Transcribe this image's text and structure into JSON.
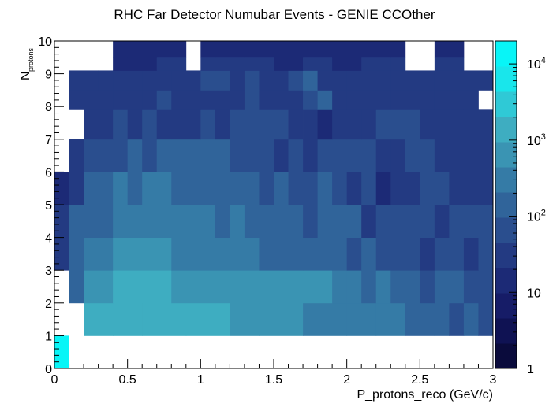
{
  "chart_data": {
    "type": "heatmap",
    "title": "RHC Far Detector Numubar Events - GENIE CCOther",
    "xlabel": "P_protons_reco (GeV/c)",
    "ylabel_main": "N",
    "ylabel_sub": "protons",
    "xlim": [
      0,
      3
    ],
    "ylim": [
      0,
      10
    ],
    "zlim": [
      1,
      20000
    ],
    "zscale": "log",
    "grid": false,
    "colorbar_position": "right",
    "x_bin_edges_count": 30,
    "y_bin_edges_count": 24,
    "x_ticks": [
      "0",
      "0.5",
      "1",
      "1.5",
      "2",
      "2.5",
      "3"
    ],
    "x_tick_values": [
      0,
      0.5,
      1,
      1.5,
      2,
      2.5,
      3
    ],
    "y_ticks": [
      "0",
      "1",
      "2",
      "3",
      "4",
      "5",
      "6",
      "7",
      "8",
      "9",
      "10"
    ],
    "y_tick_values": [
      0,
      1,
      2,
      3,
      4,
      5,
      6,
      7,
      8,
      9,
      10
    ],
    "z_ticks": [
      {
        "base": "1",
        "exp": "",
        "value": 1
      },
      {
        "base": "10",
        "exp": "",
        "value": 10
      },
      {
        "base": "10",
        "exp": "2",
        "value": 100
      },
      {
        "base": "10",
        "exp": "3",
        "value": 1000
      },
      {
        "base": "10",
        "exp": "4",
        "value": 10000
      }
    ],
    "palette": [
      "#0a0b3c",
      "#0f1253",
      "#161c67",
      "#1c2a76",
      "#233a82",
      "#2a4e8e",
      "#30649a",
      "#357ba6",
      "#3a94b3",
      "#3eadc1",
      "#2fc9d6",
      "#19e6eb",
      "#08f5f7"
    ],
    "rows": [
      {
        "y0": 0,
        "y1": 1,
        "cells": [
          [
            0,
            0.1,
            20000
          ]
        ]
      },
      {
        "y0": 1,
        "y1": 2,
        "cells": [
          [
            0.2,
            0.4,
            2000
          ],
          [
            0.4,
            0.6,
            1800
          ],
          [
            0.6,
            0.9,
            1800
          ],
          [
            0.9,
            1.2,
            1200
          ],
          [
            1.2,
            1.4,
            700
          ],
          [
            1.4,
            1.7,
            500
          ],
          [
            1.7,
            2.0,
            400
          ],
          [
            2.0,
            2.2,
            350
          ],
          [
            2.2,
            2.4,
            300
          ],
          [
            2.4,
            2.6,
            150
          ],
          [
            2.6,
            2.7,
            150
          ],
          [
            2.7,
            2.8,
            80
          ],
          [
            2.8,
            2.9,
            100
          ],
          [
            2.9,
            3.0,
            50
          ]
        ]
      },
      {
        "y0": 2,
        "y1": 3,
        "cells": [
          [
            0.1,
            0.2,
            150
          ],
          [
            0.2,
            0.4,
            800
          ],
          [
            0.4,
            0.8,
            1100
          ],
          [
            0.8,
            1.1,
            900
          ],
          [
            1.1,
            1.4,
            900
          ],
          [
            1.4,
            1.7,
            600
          ],
          [
            1.7,
            1.9,
            500
          ],
          [
            1.9,
            2.0,
            300
          ],
          [
            2.0,
            2.1,
            350
          ],
          [
            2.1,
            2.2,
            150
          ],
          [
            2.2,
            2.3,
            250
          ],
          [
            2.3,
            2.4,
            150
          ],
          [
            2.4,
            2.5,
            150
          ],
          [
            2.5,
            2.6,
            80
          ],
          [
            2.6,
            2.7,
            150
          ],
          [
            2.7,
            2.8,
            150
          ],
          [
            2.8,
            2.9,
            80
          ],
          [
            2.9,
            3.0,
            80
          ]
        ]
      },
      {
        "y0": 3,
        "y1": 4,
        "cells": [
          [
            0,
            0.1,
            40
          ],
          [
            0.1,
            0.2,
            100
          ],
          [
            0.2,
            0.4,
            350
          ],
          [
            0.4,
            0.8,
            600
          ],
          [
            0.8,
            1.1,
            300
          ],
          [
            1.1,
            1.4,
            250
          ],
          [
            1.4,
            1.7,
            180
          ],
          [
            1.7,
            1.9,
            100
          ],
          [
            1.9,
            2.0,
            150
          ],
          [
            2.0,
            2.1,
            60
          ],
          [
            2.1,
            2.2,
            200
          ],
          [
            2.2,
            2.4,
            60
          ],
          [
            2.4,
            2.5,
            80
          ],
          [
            2.5,
            2.6,
            30
          ],
          [
            2.6,
            2.8,
            60
          ],
          [
            2.8,
            2.9,
            30
          ],
          [
            2.9,
            3.0,
            60
          ]
        ]
      },
      {
        "y0": 4,
        "y1": 5,
        "cells": [
          [
            0,
            0.1,
            40
          ],
          [
            0.1,
            0.2,
            100
          ],
          [
            0.2,
            0.4,
            200
          ],
          [
            0.4,
            0.6,
            350
          ],
          [
            0.6,
            1.1,
            250
          ],
          [
            1.1,
            1.2,
            150
          ],
          [
            1.2,
            1.3,
            250
          ],
          [
            1.3,
            1.7,
            120
          ],
          [
            1.7,
            1.8,
            60
          ],
          [
            1.8,
            2.1,
            120
          ],
          [
            2.1,
            2.2,
            30
          ],
          [
            2.2,
            2.4,
            60
          ],
          [
            2.4,
            2.6,
            80
          ],
          [
            2.6,
            2.7,
            40
          ],
          [
            2.7,
            3.0,
            60
          ]
        ]
      },
      {
        "y0": 5,
        "y1": 6,
        "cells": [
          [
            0,
            0.1,
            20
          ],
          [
            0.1,
            0.2,
            40
          ],
          [
            0.2,
            0.3,
            100
          ],
          [
            0.3,
            0.4,
            180
          ],
          [
            0.4,
            0.5,
            300
          ],
          [
            0.5,
            0.6,
            180
          ],
          [
            0.6,
            0.8,
            250
          ],
          [
            0.8,
            1.1,
            180
          ],
          [
            1.1,
            1.3,
            100
          ],
          [
            1.3,
            1.4,
            180
          ],
          [
            1.4,
            1.5,
            60
          ],
          [
            1.5,
            1.6,
            100
          ],
          [
            1.6,
            1.8,
            60
          ],
          [
            1.8,
            1.9,
            100
          ],
          [
            1.9,
            2.0,
            60
          ],
          [
            2.0,
            2.1,
            40
          ],
          [
            2.1,
            2.2,
            80
          ],
          [
            2.2,
            2.3,
            20
          ],
          [
            2.3,
            2.5,
            40
          ],
          [
            2.5,
            2.7,
            60
          ],
          [
            2.7,
            3.0,
            40
          ]
        ]
      },
      {
        "y0": 6,
        "y1": 7,
        "cells": [
          [
            0.1,
            0.2,
            30
          ],
          [
            0.2,
            0.3,
            50
          ],
          [
            0.3,
            0.5,
            60
          ],
          [
            0.5,
            0.6,
            120
          ],
          [
            0.6,
            0.7,
            80
          ],
          [
            0.7,
            0.8,
            150
          ],
          [
            0.8,
            1.2,
            100
          ],
          [
            1.2,
            1.4,
            80
          ],
          [
            1.4,
            1.5,
            50
          ],
          [
            1.5,
            1.6,
            25
          ],
          [
            1.6,
            1.7,
            60
          ],
          [
            1.7,
            1.8,
            40
          ],
          [
            1.8,
            2.0,
            50
          ],
          [
            2.0,
            2.2,
            50
          ],
          [
            2.2,
            2.3,
            30
          ],
          [
            2.3,
            2.4,
            40
          ],
          [
            2.4,
            2.6,
            50
          ],
          [
            2.6,
            2.7,
            30
          ],
          [
            2.7,
            3.0,
            40
          ]
        ]
      },
      {
        "y0": 7,
        "y1": 7.9,
        "cells": [
          [
            0.2,
            0.4,
            30
          ],
          [
            0.4,
            0.5,
            50
          ],
          [
            0.5,
            0.6,
            30
          ],
          [
            0.6,
            0.7,
            60
          ],
          [
            0.7,
            1.0,
            40
          ],
          [
            1.0,
            1.1,
            60
          ],
          [
            1.1,
            1.2,
            40
          ],
          [
            1.2,
            1.6,
            60
          ],
          [
            1.6,
            1.7,
            40
          ],
          [
            1.7,
            1.8,
            25
          ],
          [
            1.8,
            1.9,
            20
          ],
          [
            1.9,
            2.1,
            30
          ],
          [
            2.1,
            2.2,
            40
          ],
          [
            2.2,
            2.4,
            60
          ],
          [
            2.4,
            2.5,
            50
          ],
          [
            2.5,
            2.7,
            40
          ],
          [
            2.7,
            3.0,
            30
          ]
        ]
      },
      {
        "y0": 7.9,
        "y1": 8.5,
        "cells": [
          [
            0.1,
            0.4,
            25
          ],
          [
            0.4,
            0.6,
            40
          ],
          [
            0.6,
            0.7,
            30
          ],
          [
            0.7,
            0.8,
            50
          ],
          [
            0.8,
            1.0,
            30
          ],
          [
            1.0,
            1.3,
            40
          ],
          [
            1.3,
            1.4,
            60
          ],
          [
            1.4,
            1.7,
            40
          ],
          [
            1.7,
            1.8,
            60
          ],
          [
            1.8,
            1.9,
            120
          ],
          [
            1.9,
            2.0,
            40
          ],
          [
            2.0,
            2.2,
            30
          ],
          [
            2.2,
            2.3,
            25
          ],
          [
            2.3,
            2.4,
            40
          ],
          [
            2.4,
            2.5,
            30
          ],
          [
            2.5,
            2.6,
            25
          ],
          [
            2.6,
            2.8,
            30
          ],
          [
            2.8,
            2.9,
            25
          ]
        ]
      },
      {
        "y0": 8.5,
        "y1": 9.1,
        "cells": [
          [
            0.1,
            0.3,
            25
          ],
          [
            0.3,
            0.4,
            30
          ],
          [
            0.4,
            0.6,
            40
          ],
          [
            0.6,
            0.8,
            30
          ],
          [
            0.8,
            1.0,
            40
          ],
          [
            1.0,
            1.2,
            50
          ],
          [
            1.2,
            1.3,
            40
          ],
          [
            1.3,
            1.4,
            60
          ],
          [
            1.4,
            1.6,
            40
          ],
          [
            1.6,
            1.7,
            50
          ],
          [
            1.7,
            1.8,
            120
          ],
          [
            1.8,
            2.0,
            40
          ],
          [
            2.0,
            2.2,
            30
          ],
          [
            2.2,
            2.3,
            25
          ],
          [
            2.3,
            2.5,
            40
          ],
          [
            2.5,
            2.6,
            30
          ],
          [
            2.6,
            2.7,
            25
          ],
          [
            2.7,
            3.0,
            30
          ]
        ]
      },
      {
        "y0": 9.1,
        "y1": 9.5,
        "cells": [
          [
            0.4,
            0.7,
            20
          ],
          [
            0.7,
            0.9,
            25
          ],
          [
            1.0,
            1.1,
            30
          ],
          [
            1.1,
            1.3,
            25
          ],
          [
            1.3,
            1.5,
            30
          ],
          [
            1.5,
            1.7,
            20
          ],
          [
            1.7,
            1.9,
            25
          ],
          [
            1.9,
            2.1,
            20
          ],
          [
            2.1,
            2.3,
            30
          ],
          [
            2.3,
            2.4,
            25
          ],
          [
            2.6,
            2.8,
            30
          ]
        ]
      },
      {
        "y0": 9.5,
        "y1": 10,
        "cells": [
          [
            0.4,
            0.5,
            15
          ],
          [
            0.5,
            0.7,
            20
          ],
          [
            0.7,
            0.9,
            15
          ],
          [
            1.0,
            1.1,
            20
          ],
          [
            1.1,
            1.3,
            15
          ],
          [
            1.3,
            1.5,
            20
          ],
          [
            1.5,
            1.7,
            12
          ],
          [
            1.7,
            1.9,
            20
          ],
          [
            1.9,
            2.1,
            15
          ],
          [
            2.1,
            2.3,
            20
          ],
          [
            2.3,
            2.4,
            15
          ],
          [
            2.6,
            2.8,
            20
          ]
        ]
      }
    ]
  }
}
